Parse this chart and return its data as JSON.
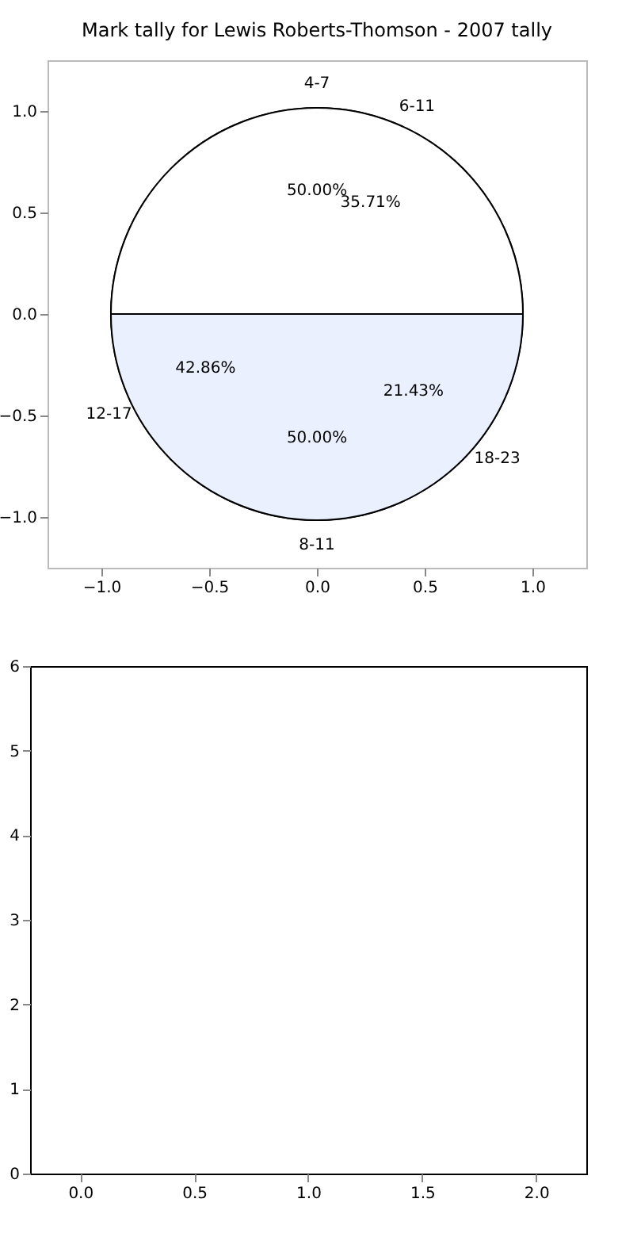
{
  "chart_data": [
    {
      "type": "scatter",
      "title": "Mark tally for Lewis Roberts-Thomson - 2007 tally",
      "xlim": [
        -1.25,
        1.25
      ],
      "ylim": [
        -1.25,
        1.25
      ],
      "xticks": [
        {
          "value": -1,
          "label": "−1.0"
        },
        {
          "value": -0.5,
          "label": "−0.5"
        },
        {
          "value": 0,
          "label": "0.0"
        },
        {
          "value": 0.5,
          "label": "0.5"
        },
        {
          "value": 1,
          "label": "1.0"
        }
      ],
      "yticks": [
        {
          "value": -1,
          "label": "−1.0"
        },
        {
          "value": -0.5,
          "label": "−0.5"
        },
        {
          "value": 0,
          "label": "0.0"
        },
        {
          "value": 0.5,
          "label": "0.5"
        },
        {
          "value": 1,
          "label": "1.0"
        }
      ]
    },
    {
      "type": "pie",
      "categories": [
        "4-7",
        "8-11"
      ],
      "values": [
        50,
        50
      ],
      "colors": [
        "#ffffff",
        "#eaf0fe"
      ],
      "data_labels": true,
      "value_labels": [
        "50.00%",
        "50.00%"
      ]
    },
    {
      "type": "pie",
      "categories": [
        "6-11",
        "12-17",
        "18-23"
      ],
      "values": [
        35.71,
        42.86,
        21.43
      ],
      "colors": [
        "#ffffff",
        "#eaf0fe",
        "#c6d8f8"
      ],
      "data_labels": true,
      "value_labels": [
        "35.71%",
        "42.86%",
        "21.43%"
      ]
    },
    {
      "type": "scatter",
      "xlim": [
        -0.22,
        2.22
      ],
      "ylim": [
        0,
        6
      ],
      "xticks": [
        {
          "value": 0,
          "label": "0.0"
        },
        {
          "value": 0.5,
          "label": "0.5"
        },
        {
          "value": 1,
          "label": "1.0"
        },
        {
          "value": 1.5,
          "label": "1.5"
        },
        {
          "value": 2,
          "label": "2.0"
        }
      ],
      "yticks": [
        0,
        1,
        2,
        3,
        4,
        5,
        6
      ]
    }
  ]
}
